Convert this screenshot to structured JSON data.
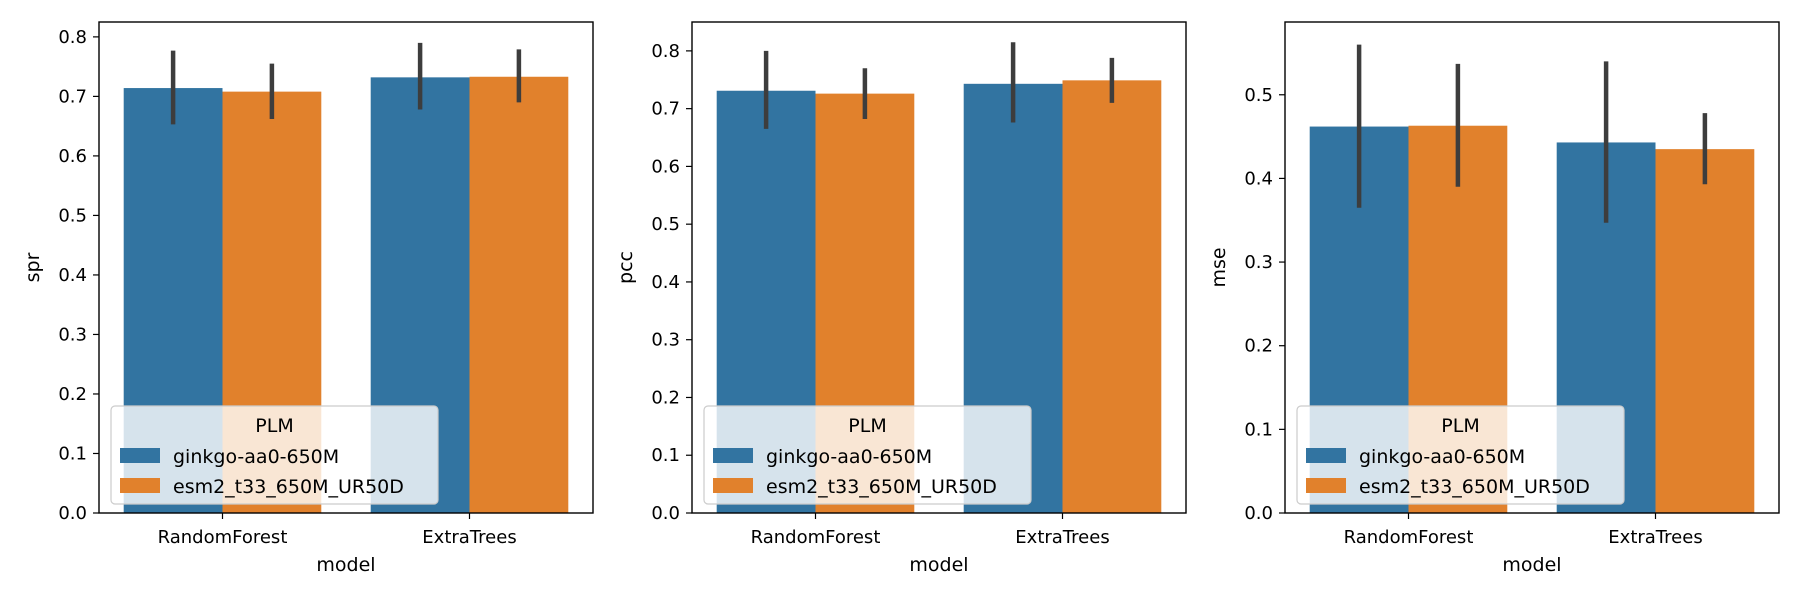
{
  "chart_data": [
    {
      "type": "bar",
      "categories": [
        "RandomForest",
        "ExtraTrees"
      ],
      "xlabel": "model",
      "ylabel": "spr",
      "ylim": [
        0,
        0.825
      ],
      "yticks": [
        "0.0",
        "0.1",
        "0.2",
        "0.3",
        "0.4",
        "0.5",
        "0.6",
        "0.7",
        "0.8"
      ],
      "yticks_values": [
        0,
        0.1,
        0.2,
        0.3,
        0.4,
        0.5,
        0.6,
        0.7,
        0.8
      ],
      "series": [
        {
          "name": "ginkgo-aa0-650M",
          "values": [
            0.714,
            0.732
          ],
          "err_low": [
            0.653,
            0.678
          ],
          "err_high": [
            0.777,
            0.79
          ]
        },
        {
          "name": "esm2_t33_650M_UR50D",
          "values": [
            0.708,
            0.733
          ],
          "err_low": [
            0.662,
            0.69
          ],
          "err_high": [
            0.755,
            0.779
          ]
        }
      ],
      "legend": {
        "title": "PLM",
        "placement": "lower-left"
      },
      "grid": false
    },
    {
      "type": "bar",
      "categories": [
        "RandomForest",
        "ExtraTrees"
      ],
      "xlabel": "model",
      "ylabel": "pcc",
      "ylim": [
        0,
        0.85
      ],
      "yticks": [
        "0.0",
        "0.1",
        "0.2",
        "0.3",
        "0.4",
        "0.5",
        "0.6",
        "0.7",
        "0.8"
      ],
      "yticks_values": [
        0,
        0.1,
        0.2,
        0.3,
        0.4,
        0.5,
        0.6,
        0.7,
        0.8
      ],
      "series": [
        {
          "name": "ginkgo-aa0-650M",
          "values": [
            0.731,
            0.743
          ],
          "err_low": [
            0.665,
            0.676
          ],
          "err_high": [
            0.8,
            0.815
          ]
        },
        {
          "name": "esm2_t33_650M_UR50D",
          "values": [
            0.726,
            0.749
          ],
          "err_low": [
            0.682,
            0.71
          ],
          "err_high": [
            0.77,
            0.788
          ]
        }
      ],
      "legend": {
        "title": "PLM",
        "placement": "lower-left"
      },
      "grid": false
    },
    {
      "type": "bar",
      "categories": [
        "RandomForest",
        "ExtraTrees"
      ],
      "xlabel": "model",
      "ylabel": "mse",
      "ylim": [
        0,
        0.587
      ],
      "yticks": [
        "0.0",
        "0.1",
        "0.2",
        "0.3",
        "0.4",
        "0.5"
      ],
      "yticks_values": [
        0,
        0.1,
        0.2,
        0.3,
        0.4,
        0.5
      ],
      "series": [
        {
          "name": "ginkgo-aa0-650M",
          "values": [
            0.462,
            0.443
          ],
          "err_low": [
            0.365,
            0.347
          ],
          "err_high": [
            0.56,
            0.54
          ]
        },
        {
          "name": "esm2_t33_650M_UR50D",
          "values": [
            0.463,
            0.435
          ],
          "err_low": [
            0.39,
            0.393
          ],
          "err_high": [
            0.537,
            0.478
          ]
        }
      ],
      "legend": {
        "title": "PLM",
        "placement": "lower-left"
      },
      "grid": false
    }
  ],
  "colors": {
    "series": [
      "#3274a1",
      "#e1812c"
    ],
    "errorbar": "#3d3d3d",
    "axis": "#000000"
  }
}
